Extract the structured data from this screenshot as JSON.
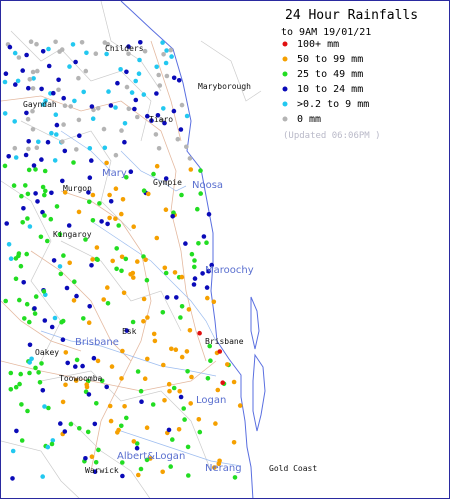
{
  "legend": {
    "title": "24 Hour Rainfalls",
    "subtitle": "to 9AM 19/01/21",
    "updated": "(Updated 06:06PM  )",
    "categories": [
      {
        "label": "100+ mm",
        "color": "#e01010"
      },
      {
        "label": "50  to 99 mm",
        "color": "#f5a000"
      },
      {
        "label": "25  to 49 mm",
        "color": "#22dd22"
      },
      {
        "label": "10  to 24 mm",
        "color": "#0a0ab8"
      },
      {
        "label": ">0.2 to 9 mm",
        "color": "#22c8f0"
      },
      {
        "label": "0 mm",
        "color": "#b4b4b4"
      }
    ]
  },
  "towns": [
    "Childers",
    "Maryborough",
    "Gayndah",
    "Tiaro",
    "Gympie",
    "Murgon",
    "Kingaroy",
    "Esk",
    "Oakey",
    "Brisbane",
    "Toowoomba",
    "Warwick",
    "Gold Coast"
  ],
  "basins": [
    "Mary",
    "Noosa",
    "Maroochy",
    "Brisbane",
    "Logan",
    "Albert&Logan",
    "Nerang"
  ],
  "colors": {
    "ocean": "#ffffff",
    "coast": "#5a6fe0",
    "river": "#8fb4f0",
    "road": "#e6b8a0",
    "boundary": "#c8c8c8"
  }
}
